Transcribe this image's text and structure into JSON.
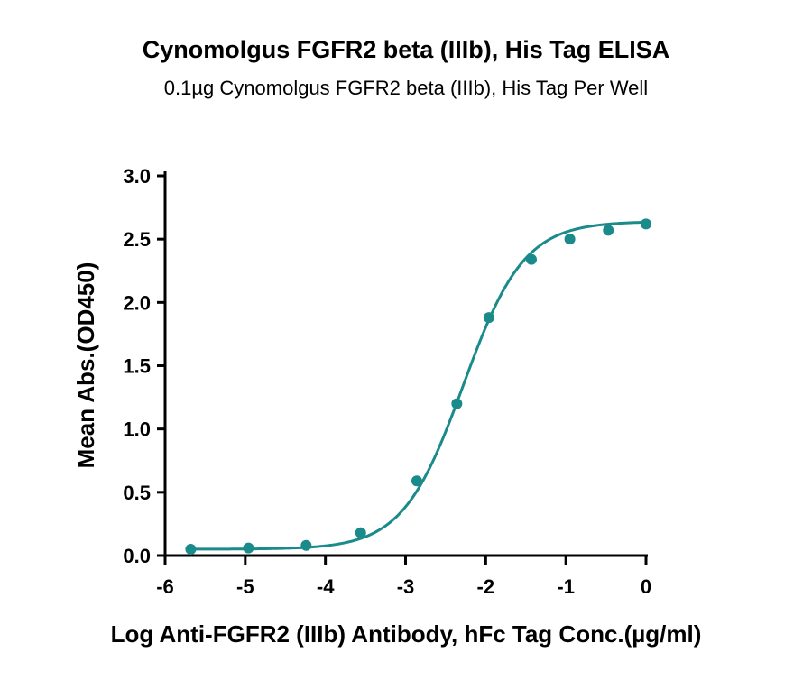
{
  "chart_data": {
    "type": "scatter",
    "title": "Cynomolgus FGFR2 beta (IIIb), His Tag ELISA",
    "subtitle": "0.1µg Cynomolgus FGFR2 beta (IIIb), His Tag Per Well",
    "xlabel": "Log Anti-FGFR2 (IIIb) Antibody, hFc Tag Conc.(µg/ml)",
    "ylabel": "Mean Abs.(OD450)",
    "xlim": [
      -6,
      0
    ],
    "ylim": [
      0,
      3.0
    ],
    "x_ticks": [
      "-6",
      "-5",
      "-4",
      "-3",
      "-2",
      "-1",
      "0"
    ],
    "y_ticks": [
      "0.0",
      "0.5",
      "1.0",
      "1.5",
      "2.0",
      "2.5",
      "3.0"
    ],
    "grid": false,
    "series": [
      {
        "x": [
          -5.68,
          -4.96,
          -4.24,
          -3.56,
          -2.86,
          -2.36,
          -1.96,
          -1.43,
          -0.95,
          -0.47,
          0.0
        ],
        "y": [
          0.05,
          0.06,
          0.08,
          0.18,
          0.59,
          1.2,
          1.88,
          2.34,
          2.5,
          2.57,
          2.62
        ],
        "color": "#1a8a8a",
        "fit": "4PL sigmoid"
      }
    ]
  }
}
